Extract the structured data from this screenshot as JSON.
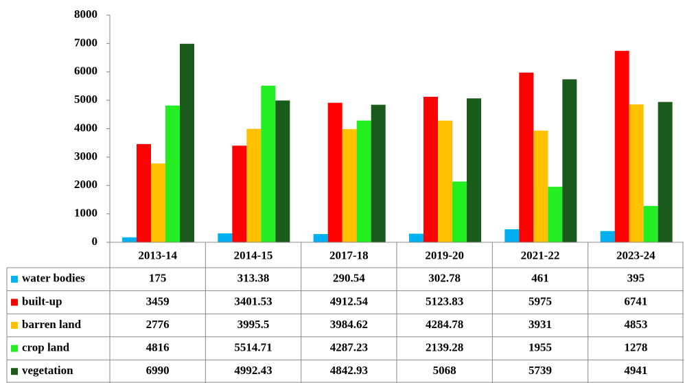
{
  "chart_data": {
    "type": "bar",
    "categories": [
      "2013-14",
      "2014-15",
      "2017-18",
      "2019-20",
      "2021-22",
      "2023-24"
    ],
    "series": [
      {
        "name": "water bodies",
        "color": "#00b0f0",
        "values": [
          175,
          313.38,
          290.54,
          302.78,
          461,
          395
        ]
      },
      {
        "name": "built-up",
        "color": "#ff0000",
        "values": [
          3459,
          3401.53,
          4912.54,
          5123.83,
          5975,
          6741
        ]
      },
      {
        "name": "barren land",
        "color": "#ffc000",
        "values": [
          2776,
          3995.5,
          3984.62,
          4284.78,
          3931,
          4853
        ]
      },
      {
        "name": "crop land",
        "color": "#22ee22",
        "values": [
          4816,
          5514.71,
          4287.23,
          2139.28,
          1955,
          1278
        ]
      },
      {
        "name": "vegetation",
        "color": "#1a5a1a",
        "values": [
          6990,
          4992.43,
          4842.93,
          5068,
          5739,
          4941
        ]
      }
    ],
    "ylim": [
      0,
      8000
    ],
    "yticks": [
      0,
      1000,
      2000,
      3000,
      4000,
      5000,
      6000,
      7000,
      8000
    ],
    "grid": false
  }
}
